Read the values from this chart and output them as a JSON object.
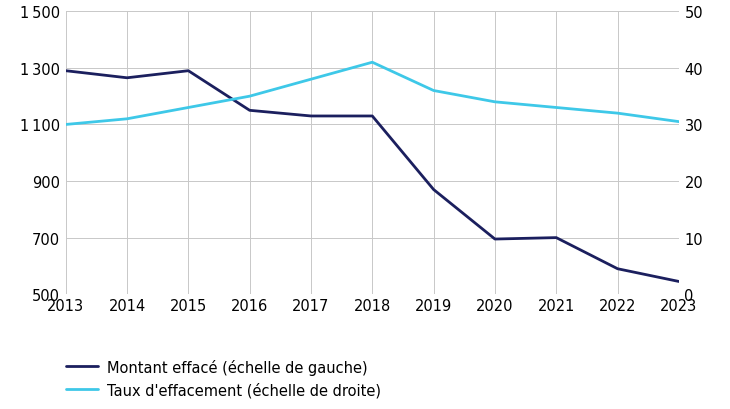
{
  "years": [
    2013,
    2014,
    2015,
    2016,
    2017,
    2018,
    2019,
    2020,
    2021,
    2022,
    2023
  ],
  "montant": [
    1290,
    1265,
    1290,
    1150,
    1130,
    1130,
    870,
    695,
    700,
    590,
    545
  ],
  "taux": [
    30,
    31,
    33,
    35,
    38,
    41,
    36,
    34,
    33,
    32,
    30.5
  ],
  "montant_color": "#1b1f5e",
  "taux_color": "#3ec8e8",
  "background_color": "#ffffff",
  "grid_color": "#c8c8c8",
  "ylim_left": [
    500,
    1500
  ],
  "ylim_right": [
    0,
    50
  ],
  "yticks_left": [
    500,
    700,
    900,
    1100,
    1300,
    1500
  ],
  "yticks_right": [
    0,
    10,
    20,
    30,
    40,
    50
  ],
  "legend_montant": "Montant effacé (échelle de gauche)",
  "legend_taux": "Taux d'effacement (échelle de droite)",
  "line_width": 2.0,
  "tick_label_fontsize": 10.5,
  "legend_fontsize": 10.5
}
